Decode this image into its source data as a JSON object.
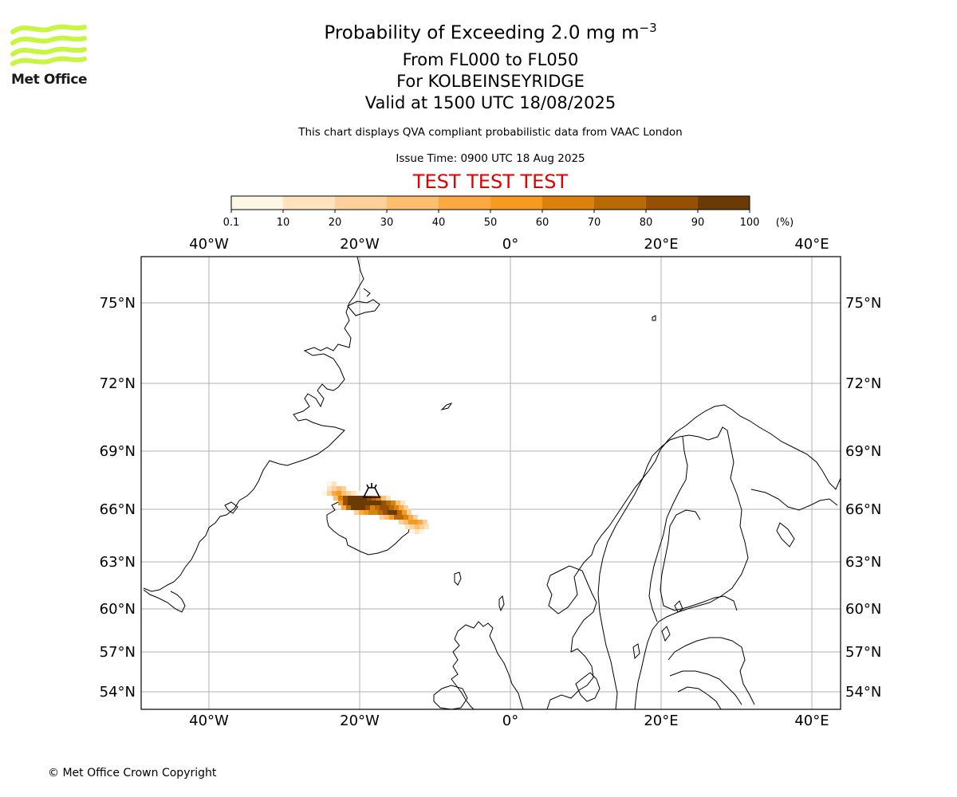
{
  "header": {
    "title_prefix": "Probability of Exceeding 2.0 mg m",
    "title_superscript": "−3",
    "flight_levels": "From FL000 to FL050",
    "location": "For KOLBEINSEYRIDGE",
    "valid_time": "Valid at 1500 UTC 18/08/2025",
    "subtitle": "This chart displays QVA compliant probabilistic data from VAAC London",
    "issue_time": "Issue Time: 0900 UTC 18 Aug 2025",
    "test_banner": "TEST TEST TEST"
  },
  "logo": {
    "text": "Met Office",
    "color": "#c8f542"
  },
  "footer": {
    "copyright": "© Met Office Crown Copyright"
  },
  "colorbar": {
    "unit_label": "(%)",
    "tick_labels": [
      "0.1",
      "10",
      "20",
      "30",
      "40",
      "50",
      "60",
      "70",
      "80",
      "90",
      "100"
    ],
    "colors": [
      "#fff7e6",
      "#fee3bf",
      "#fdd09c",
      "#fdbe70",
      "#fca843",
      "#f59b21",
      "#d9830d",
      "#b96906",
      "#955004",
      "#6b3b05"
    ]
  },
  "map": {
    "lon_labels": [
      "40°W",
      "20°W",
      "0°",
      "20°E",
      "40°E"
    ],
    "lat_labels": [
      "75°N",
      "72°N",
      "69°N",
      "66°N",
      "63°N",
      "60°N",
      "57°N",
      "54°N"
    ],
    "volcano_icon": "volcano-icon",
    "gridline_color": "#b0b0b0",
    "coast_color": "#000000",
    "plume_cells": [
      {
        "p": "low"
      },
      {
        "p": "low"
      },
      {
        "p": "low"
      },
      {
        "p": "mid"
      },
      {
        "p": "high"
      }
    ]
  }
}
